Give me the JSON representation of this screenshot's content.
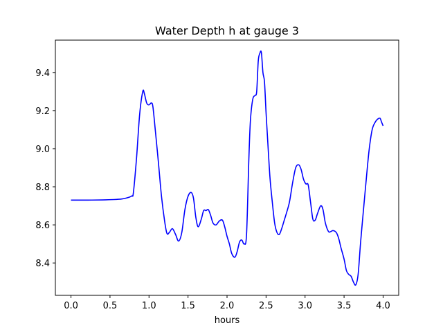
{
  "chart_data": {
    "type": "line",
    "title": "Water Depth h at gauge 3",
    "xlabel": "hours",
    "ylabel": "",
    "xlim": [
      -0.2,
      4.2
    ],
    "ylim": [
      8.23,
      9.57
    ],
    "x_ticks": [
      0.0,
      0.5,
      1.0,
      1.5,
      2.0,
      2.5,
      3.0,
      3.5,
      4.0
    ],
    "x_tick_labels": [
      "0.0",
      "0.5",
      "1.0",
      "1.5",
      "2.0",
      "2.5",
      "3.0",
      "3.5",
      "4.0"
    ],
    "y_ticks": [
      8.4,
      8.6,
      8.8,
      9.0,
      9.2,
      9.4
    ],
    "y_tick_labels": [
      "8.4",
      "8.6",
      "8.8",
      "9.0",
      "9.2",
      "9.4"
    ],
    "grid": false,
    "series": [
      {
        "color": "#0000ff",
        "x": [
          0.0,
          0.2,
          0.4,
          0.55,
          0.65,
          0.72,
          0.78,
          0.8,
          0.84,
          0.88,
          0.92,
          0.94,
          0.97,
          1.0,
          1.03,
          1.05,
          1.08,
          1.12,
          1.16,
          1.2,
          1.23,
          1.26,
          1.3,
          1.34,
          1.38,
          1.42,
          1.46,
          1.5,
          1.54,
          1.57,
          1.6,
          1.63,
          1.67,
          1.7,
          1.73,
          1.76,
          1.79,
          1.82,
          1.86,
          1.9,
          1.94,
          1.97,
          2.0,
          2.03,
          2.06,
          2.1,
          2.13,
          2.16,
          2.19,
          2.22,
          2.25,
          2.28,
          2.3,
          2.33,
          2.36,
          2.38,
          2.4,
          2.42,
          2.44,
          2.46,
          2.48,
          2.5,
          2.52,
          2.55,
          2.58,
          2.61,
          2.64,
          2.67,
          2.7,
          2.73,
          2.76,
          2.8,
          2.84,
          2.88,
          2.92,
          2.95,
          2.98,
          3.01,
          3.04,
          3.07,
          3.1,
          3.13,
          3.16,
          3.2,
          3.23,
          3.26,
          3.3,
          3.33,
          3.36,
          3.4,
          3.43,
          3.46,
          3.5,
          3.53,
          3.56,
          3.59,
          3.62,
          3.65,
          3.68,
          3.71,
          3.74,
          3.78,
          3.82,
          3.86,
          3.9,
          3.93,
          3.96,
          3.98,
          4.0
        ],
        "y": [
          8.73,
          8.73,
          8.731,
          8.733,
          8.736,
          8.742,
          8.752,
          8.77,
          8.95,
          9.18,
          9.3,
          9.29,
          9.24,
          9.23,
          9.24,
          9.22,
          9.1,
          8.93,
          8.75,
          8.62,
          8.555,
          8.56,
          8.58,
          8.55,
          8.515,
          8.56,
          8.68,
          8.75,
          8.77,
          8.74,
          8.64,
          8.59,
          8.63,
          8.675,
          8.675,
          8.68,
          8.65,
          8.61,
          8.6,
          8.62,
          8.625,
          8.59,
          8.54,
          8.5,
          8.45,
          8.43,
          8.46,
          8.51,
          8.52,
          8.5,
          8.55,
          8.95,
          9.15,
          9.26,
          9.28,
          9.3,
          9.46,
          9.5,
          9.505,
          9.4,
          9.35,
          9.19,
          9.05,
          8.85,
          8.72,
          8.61,
          8.56,
          8.55,
          8.58,
          8.62,
          8.66,
          8.72,
          8.82,
          8.9,
          8.915,
          8.89,
          8.84,
          8.815,
          8.81,
          8.72,
          8.63,
          8.625,
          8.66,
          8.7,
          8.68,
          8.61,
          8.565,
          8.565,
          8.57,
          8.56,
          8.53,
          8.48,
          8.42,
          8.36,
          8.34,
          8.33,
          8.3,
          8.285,
          8.34,
          8.5,
          8.64,
          8.82,
          8.99,
          9.1,
          9.14,
          9.155,
          9.16,
          9.14,
          9.12
        ]
      }
    ]
  }
}
